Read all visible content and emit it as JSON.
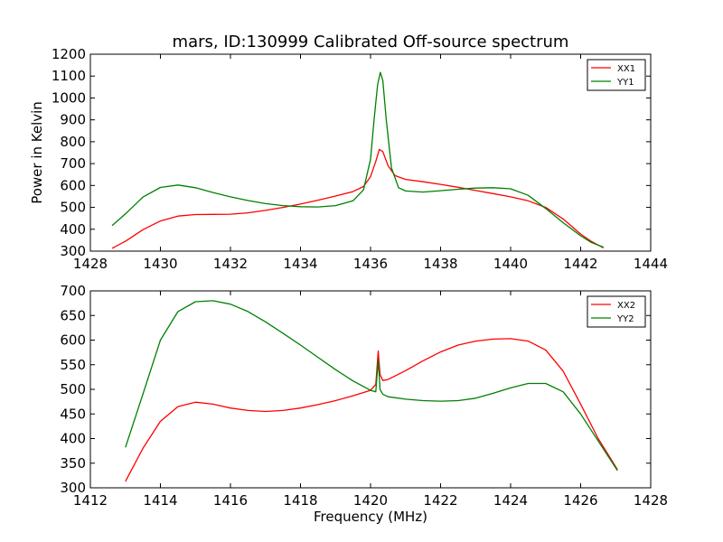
{
  "chart_data": [
    {
      "type": "line",
      "title": "mars, ID:130999 Calibrated Off-source spectrum",
      "xlabel": "",
      "ylabel": "Power in Kelvin",
      "xlim": [
        1428,
        1444
      ],
      "ylim": [
        300,
        1200
      ],
      "xticks": [
        1428,
        1430,
        1432,
        1434,
        1436,
        1438,
        1440,
        1442,
        1444
      ],
      "yticks": [
        300,
        400,
        500,
        600,
        700,
        800,
        900,
        1000,
        1100,
        1200
      ],
      "legend_position": "top-right",
      "series": [
        {
          "name": "XX1",
          "color": "#ff0000",
          "x": [
            1428.62,
            1429.0,
            1429.5,
            1430.0,
            1430.5,
            1431.0,
            1431.5,
            1432.0,
            1432.5,
            1433.0,
            1433.5,
            1434.0,
            1434.5,
            1435.0,
            1435.5,
            1435.8,
            1436.0,
            1436.15,
            1436.25,
            1436.35,
            1436.5,
            1436.7,
            1437.0,
            1437.5,
            1438.0,
            1438.5,
            1439.0,
            1439.5,
            1440.0,
            1440.5,
            1441.0,
            1441.5,
            1442.0,
            1442.3,
            1442.65
          ],
          "y": [
            313,
            345,
            398,
            438,
            460,
            467,
            468,
            469,
            475,
            486,
            500,
            515,
            533,
            552,
            572,
            595,
            640,
            710,
            765,
            755,
            690,
            645,
            628,
            617,
            605,
            592,
            577,
            563,
            548,
            530,
            500,
            447,
            378,
            345,
            315
          ]
        },
        {
          "name": "YY1",
          "color": "#008000",
          "x": [
            1428.62,
            1429.0,
            1429.5,
            1430.0,
            1430.5,
            1431.0,
            1431.5,
            1432.0,
            1432.5,
            1433.0,
            1433.5,
            1434.0,
            1434.5,
            1435.0,
            1435.5,
            1435.8,
            1436.0,
            1436.1,
            1436.2,
            1436.28,
            1436.35,
            1436.45,
            1436.6,
            1436.8,
            1437.0,
            1437.5,
            1438.0,
            1438.5,
            1439.0,
            1439.5,
            1440.0,
            1440.5,
            1441.0,
            1441.5,
            1442.0,
            1442.3,
            1442.65
          ],
          "y": [
            417,
            470,
            547,
            591,
            602,
            590,
            568,
            548,
            531,
            517,
            508,
            503,
            502,
            508,
            530,
            580,
            720,
            900,
            1060,
            1117,
            1080,
            900,
            680,
            590,
            575,
            570,
            576,
            583,
            588,
            590,
            585,
            555,
            495,
            430,
            370,
            340,
            318
          ]
        }
      ]
    },
    {
      "type": "line",
      "title": "",
      "xlabel": "Frequency (MHz)",
      "ylabel": "",
      "xlim": [
        1412,
        1428
      ],
      "ylim": [
        300,
        700
      ],
      "xticks": [
        1412,
        1414,
        1416,
        1418,
        1420,
        1422,
        1424,
        1426,
        1428
      ],
      "yticks": [
        300,
        350,
        400,
        450,
        500,
        550,
        600,
        650,
        700
      ],
      "legend_position": "top-right",
      "series": [
        {
          "name": "XX2",
          "color": "#ff0000",
          "x": [
            1413.0,
            1413.5,
            1414.0,
            1414.5,
            1415.0,
            1415.5,
            1416.0,
            1416.5,
            1417.0,
            1417.5,
            1418.0,
            1418.5,
            1419.0,
            1419.5,
            1420.0,
            1420.15,
            1420.22,
            1420.27,
            1420.35,
            1420.5,
            1421.0,
            1421.5,
            1422.0,
            1422.5,
            1423.0,
            1423.5,
            1424.0,
            1424.5,
            1425.0,
            1425.5,
            1426.0,
            1426.5,
            1427.05
          ],
          "y": [
            313,
            380,
            435,
            465,
            474,
            470,
            462,
            457,
            455,
            457,
            462,
            469,
            477,
            487,
            498,
            510,
            578,
            530,
            518,
            520,
            538,
            558,
            576,
            590,
            598,
            602,
            603,
            598,
            580,
            537,
            470,
            400,
            337
          ]
        },
        {
          "name": "YY2",
          "color": "#008000",
          "x": [
            1413.0,
            1413.5,
            1414.0,
            1414.5,
            1415.0,
            1415.5,
            1416.0,
            1416.5,
            1417.0,
            1417.5,
            1418.0,
            1418.5,
            1419.0,
            1419.5,
            1420.0,
            1420.15,
            1420.22,
            1420.27,
            1420.35,
            1420.5,
            1421.0,
            1421.5,
            1422.0,
            1422.5,
            1423.0,
            1423.5,
            1424.0,
            1424.5,
            1425.0,
            1425.5,
            1426.0,
            1426.5,
            1427.05
          ],
          "y": [
            382,
            490,
            600,
            658,
            678,
            680,
            673,
            658,
            637,
            614,
            590,
            565,
            540,
            517,
            498,
            495,
            560,
            500,
            490,
            485,
            480,
            477,
            476,
            477,
            482,
            492,
            503,
            512,
            512,
            495,
            450,
            395,
            335
          ]
        }
      ]
    }
  ]
}
